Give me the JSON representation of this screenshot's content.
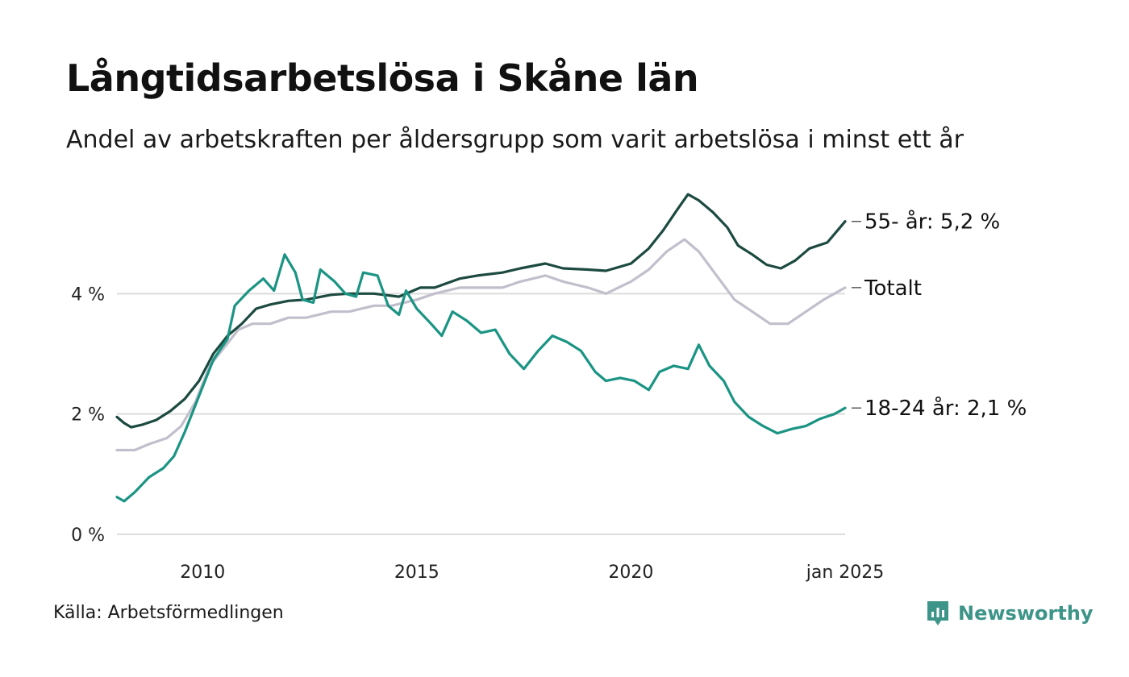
{
  "title": "Långtidsarbetslösa i Skåne län",
  "subtitle": "Andel av arbetskraften per åldersgrupp som varit arbetslösa i minst ett år",
  "source": "Källa: Arbetsförmedlingen",
  "brand": {
    "name": "Newsworthy",
    "icon": "newsworthy-logo-icon",
    "color": "#3d9488"
  },
  "chart_data": {
    "type": "line",
    "title": "Långtidsarbetslösa i Skåne län",
    "xlabel": "",
    "ylabel": "",
    "x_range": [
      "2008-01",
      "2025-01"
    ],
    "ylim": [
      0,
      6
    ],
    "y_ticks": [
      {
        "value": 0,
        "label": "0 %"
      },
      {
        "value": 2,
        "label": "2 %"
      },
      {
        "value": 4,
        "label": "4 %"
      }
    ],
    "x_ticks": [
      {
        "date": "2010-01",
        "label": "2010"
      },
      {
        "date": "2015-01",
        "label": "2015"
      },
      {
        "date": "2020-01",
        "label": "2020"
      },
      {
        "date": "2025-01",
        "label": "jan 2025"
      }
    ],
    "grid": "horizontal",
    "legend": "end-of-line labels",
    "series": [
      {
        "label": "Totalt",
        "color": "#c2bfcc",
        "points": [
          [
            "2008-01",
            1.4
          ],
          [
            "2008-06",
            1.4
          ],
          [
            "2008-10",
            1.5
          ],
          [
            "2009-03",
            1.6
          ],
          [
            "2009-07",
            1.8
          ],
          [
            "2009-11",
            2.2
          ],
          [
            "2010-03",
            2.8
          ],
          [
            "2010-07",
            3.1
          ],
          [
            "2010-11",
            3.4
          ],
          [
            "2011-03",
            3.5
          ],
          [
            "2011-08",
            3.5
          ],
          [
            "2012-01",
            3.6
          ],
          [
            "2012-06",
            3.6
          ],
          [
            "2013-01",
            3.7
          ],
          [
            "2013-06",
            3.7
          ],
          [
            "2014-01",
            3.8
          ],
          [
            "2014-06",
            3.8
          ],
          [
            "2015-01",
            3.9
          ],
          [
            "2015-06",
            4.0
          ],
          [
            "2016-01",
            4.1
          ],
          [
            "2016-06",
            4.1
          ],
          [
            "2017-01",
            4.1
          ],
          [
            "2017-06",
            4.2
          ],
          [
            "2018-01",
            4.3
          ],
          [
            "2018-06",
            4.2
          ],
          [
            "2019-01",
            4.1
          ],
          [
            "2019-06",
            4.0
          ],
          [
            "2020-01",
            4.2
          ],
          [
            "2020-06",
            4.4
          ],
          [
            "2020-11",
            4.7
          ],
          [
            "2021-04",
            4.9
          ],
          [
            "2021-08",
            4.7
          ],
          [
            "2022-01",
            4.3
          ],
          [
            "2022-06",
            3.9
          ],
          [
            "2022-11",
            3.7
          ],
          [
            "2023-04",
            3.5
          ],
          [
            "2023-09",
            3.5
          ],
          [
            "2024-02",
            3.7
          ],
          [
            "2024-07",
            3.9
          ],
          [
            "2025-01",
            4.1
          ]
        ]
      },
      {
        "label": "55- år: 5,2 %",
        "color": "#1c4a40",
        "points": [
          [
            "2008-01",
            1.95
          ],
          [
            "2008-03",
            1.85
          ],
          [
            "2008-05",
            1.78
          ],
          [
            "2008-08",
            1.82
          ],
          [
            "2008-12",
            1.9
          ],
          [
            "2009-04",
            2.05
          ],
          [
            "2009-08",
            2.25
          ],
          [
            "2009-12",
            2.55
          ],
          [
            "2010-04",
            3.0
          ],
          [
            "2010-08",
            3.3
          ],
          [
            "2010-12",
            3.5
          ],
          [
            "2011-04",
            3.75
          ],
          [
            "2011-08",
            3.82
          ],
          [
            "2012-01",
            3.88
          ],
          [
            "2012-06",
            3.9
          ],
          [
            "2013-01",
            3.98
          ],
          [
            "2013-06",
            4.0
          ],
          [
            "2014-01",
            4.0
          ],
          [
            "2014-08",
            3.95
          ],
          [
            "2015-02",
            4.1
          ],
          [
            "2015-06",
            4.1
          ],
          [
            "2016-01",
            4.25
          ],
          [
            "2016-06",
            4.3
          ],
          [
            "2017-01",
            4.35
          ],
          [
            "2017-06",
            4.42
          ],
          [
            "2018-01",
            4.5
          ],
          [
            "2018-06",
            4.42
          ],
          [
            "2019-01",
            4.4
          ],
          [
            "2019-06",
            4.38
          ],
          [
            "2020-01",
            4.5
          ],
          [
            "2020-06",
            4.75
          ],
          [
            "2020-10",
            5.05
          ],
          [
            "2021-02",
            5.4
          ],
          [
            "2021-05",
            5.65
          ],
          [
            "2021-08",
            5.55
          ],
          [
            "2021-12",
            5.35
          ],
          [
            "2022-04",
            5.1
          ],
          [
            "2022-07",
            4.8
          ],
          [
            "2022-11",
            4.65
          ],
          [
            "2023-03",
            4.48
          ],
          [
            "2023-07",
            4.42
          ],
          [
            "2023-11",
            4.55
          ],
          [
            "2024-03",
            4.75
          ],
          [
            "2024-08",
            4.85
          ],
          [
            "2025-01",
            5.2
          ]
        ]
      },
      {
        "label": "18-24 år: 2,1 %",
        "color": "#1b9484",
        "points": [
          [
            "2008-01",
            0.62
          ],
          [
            "2008-03",
            0.55
          ],
          [
            "2008-06",
            0.7
          ],
          [
            "2008-10",
            0.95
          ],
          [
            "2009-02",
            1.1
          ],
          [
            "2009-05",
            1.3
          ],
          [
            "2009-08",
            1.7
          ],
          [
            "2009-12",
            2.3
          ],
          [
            "2010-04",
            2.9
          ],
          [
            "2010-08",
            3.25
          ],
          [
            "2010-10",
            3.8
          ],
          [
            "2011-02",
            4.05
          ],
          [
            "2011-06",
            4.25
          ],
          [
            "2011-09",
            4.05
          ],
          [
            "2011-12",
            4.65
          ],
          [
            "2012-03",
            4.35
          ],
          [
            "2012-05",
            3.9
          ],
          [
            "2012-08",
            3.85
          ],
          [
            "2012-10",
            4.4
          ],
          [
            "2013-02",
            4.2
          ],
          [
            "2013-05",
            4.0
          ],
          [
            "2013-08",
            3.95
          ],
          [
            "2013-10",
            4.35
          ],
          [
            "2014-02",
            4.3
          ],
          [
            "2014-05",
            3.8
          ],
          [
            "2014-08",
            3.65
          ],
          [
            "2014-10",
            4.05
          ],
          [
            "2015-01",
            3.75
          ],
          [
            "2015-05",
            3.5
          ],
          [
            "2015-08",
            3.3
          ],
          [
            "2015-11",
            3.7
          ],
          [
            "2016-03",
            3.55
          ],
          [
            "2016-07",
            3.35
          ],
          [
            "2016-11",
            3.4
          ],
          [
            "2017-03",
            3.0
          ],
          [
            "2017-07",
            2.75
          ],
          [
            "2017-11",
            3.05
          ],
          [
            "2018-03",
            3.3
          ],
          [
            "2018-07",
            3.2
          ],
          [
            "2018-11",
            3.05
          ],
          [
            "2019-03",
            2.7
          ],
          [
            "2019-06",
            2.55
          ],
          [
            "2019-10",
            2.6
          ],
          [
            "2020-02",
            2.55
          ],
          [
            "2020-06",
            2.4
          ],
          [
            "2020-09",
            2.7
          ],
          [
            "2021-01",
            2.8
          ],
          [
            "2021-05",
            2.75
          ],
          [
            "2021-08",
            3.15
          ],
          [
            "2021-11",
            2.8
          ],
          [
            "2022-03",
            2.55
          ],
          [
            "2022-06",
            2.2
          ],
          [
            "2022-10",
            1.95
          ],
          [
            "2023-02",
            1.8
          ],
          [
            "2023-06",
            1.68
          ],
          [
            "2023-10",
            1.75
          ],
          [
            "2024-02",
            1.8
          ],
          [
            "2024-06",
            1.92
          ],
          [
            "2024-10",
            2.0
          ],
          [
            "2025-01",
            2.1
          ]
        ]
      }
    ]
  }
}
